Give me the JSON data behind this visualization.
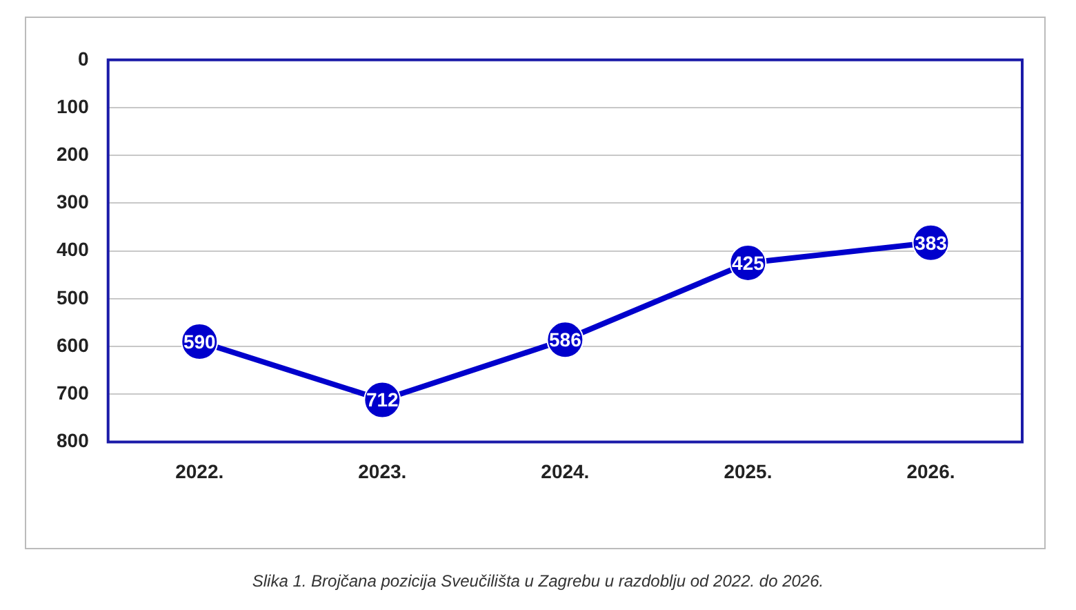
{
  "chart_data": {
    "type": "line",
    "categories": [
      "2022.",
      "2023.",
      "2024.",
      "2025.",
      "2026."
    ],
    "series": [
      {
        "color": "#0000cc",
        "values": [
          590,
          712,
          586,
          425,
          383
        ]
      }
    ],
    "ylim": [
      800,
      0
    ],
    "yticks": [
      0,
      100,
      200,
      300,
      400,
      500,
      600,
      700,
      800
    ],
    "grid": "y",
    "legend": false,
    "marker": "circle",
    "line_style": "solid",
    "data_labels": true,
    "annotations": [
      "Slika 1. Brojčana pozicija Sveučilišta u Zagrebu u razdoblju od 2022. do 2026."
    ]
  }
}
